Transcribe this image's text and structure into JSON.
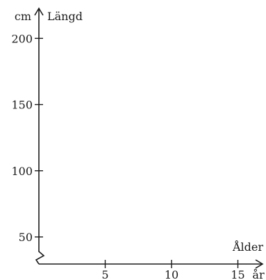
{
  "chart_data": {
    "type": "line",
    "title": "",
    "series": [],
    "y_axis": {
      "label": "Längd",
      "unit": "cm",
      "ticks": [
        50,
        100,
        150,
        200
      ],
      "range": [
        50,
        200
      ],
      "axis_break": true
    },
    "x_axis": {
      "label": "Ålder",
      "unit": "år",
      "ticks": [
        5,
        10,
        15
      ],
      "range": [
        0,
        15
      ]
    },
    "grid": false,
    "legend": "none"
  }
}
